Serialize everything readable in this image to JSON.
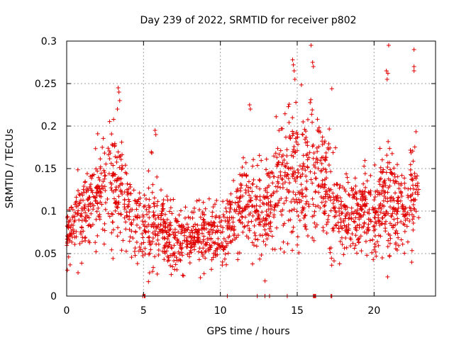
{
  "chart_data": {
    "type": "scatter",
    "title": "Day 239 of 2022, SRMTID for receiver p802",
    "xlabel": "GPS time / hours",
    "ylabel": "SRMTID / TECUs",
    "xlim": [
      0,
      24
    ],
    "ylim": [
      0,
      0.3
    ],
    "x_ticks": [
      "0",
      "5",
      "10",
      "15",
      "20"
    ],
    "y_ticks": [
      "0",
      "0.05",
      "0.1",
      "0.15",
      "0.2",
      "0.25",
      "0.3"
    ],
    "grid": true,
    "marker": "plus",
    "color": "#e00000",
    "profile": [
      [
        0.0,
        0.075,
        0.012
      ],
      [
        0.5,
        0.085,
        0.018
      ],
      [
        1.0,
        0.095,
        0.022
      ],
      [
        1.5,
        0.11,
        0.025
      ],
      [
        2.0,
        0.118,
        0.028
      ],
      [
        2.5,
        0.13,
        0.03
      ],
      [
        3.0,
        0.13,
        0.032
      ],
      [
        3.5,
        0.12,
        0.03
      ],
      [
        4.0,
        0.1,
        0.025
      ],
      [
        4.5,
        0.085,
        0.02
      ],
      [
        5.0,
        0.075,
        0.02
      ],
      [
        5.5,
        0.095,
        0.03
      ],
      [
        6.0,
        0.08,
        0.022
      ],
      [
        6.5,
        0.07,
        0.02
      ],
      [
        7.0,
        0.065,
        0.02
      ],
      [
        7.5,
        0.065,
        0.018
      ],
      [
        8.0,
        0.068,
        0.018
      ],
      [
        8.5,
        0.07,
        0.018
      ],
      [
        9.0,
        0.068,
        0.018
      ],
      [
        9.5,
        0.07,
        0.02
      ],
      [
        10.0,
        0.065,
        0.02
      ],
      [
        10.5,
        0.08,
        0.022
      ],
      [
        11.0,
        0.1,
        0.022
      ],
      [
        11.5,
        0.11,
        0.025
      ],
      [
        12.0,
        0.11,
        0.03
      ],
      [
        12.5,
        0.095,
        0.025
      ],
      [
        13.0,
        0.1,
        0.03
      ],
      [
        13.5,
        0.13,
        0.035
      ],
      [
        14.0,
        0.13,
        0.035
      ],
      [
        14.5,
        0.15,
        0.04
      ],
      [
        15.0,
        0.14,
        0.04
      ],
      [
        15.5,
        0.13,
        0.04
      ],
      [
        16.0,
        0.15,
        0.04
      ],
      [
        16.5,
        0.14,
        0.035
      ],
      [
        17.0,
        0.13,
        0.035
      ],
      [
        17.5,
        0.1,
        0.025
      ],
      [
        18.0,
        0.09,
        0.022
      ],
      [
        18.5,
        0.09,
        0.022
      ],
      [
        19.0,
        0.1,
        0.025
      ],
      [
        19.5,
        0.1,
        0.025
      ],
      [
        20.0,
        0.085,
        0.025
      ],
      [
        20.5,
        0.11,
        0.03
      ],
      [
        21.0,
        0.12,
        0.035
      ],
      [
        21.5,
        0.1,
        0.025
      ],
      [
        22.0,
        0.105,
        0.025
      ],
      [
        22.5,
        0.115,
        0.025
      ],
      [
        23.0,
        0.12,
        0.025
      ]
    ],
    "extra_points": [
      [
        3.35,
        0.245
      ],
      [
        3.4,
        0.24
      ],
      [
        3.45,
        0.23
      ],
      [
        3.3,
        0.22
      ],
      [
        5.75,
        0.195
      ],
      [
        5.8,
        0.19
      ],
      [
        11.9,
        0.225
      ],
      [
        11.95,
        0.22
      ],
      [
        14.7,
        0.278
      ],
      [
        14.75,
        0.272
      ],
      [
        14.8,
        0.265
      ],
      [
        14.85,
        0.255
      ],
      [
        15.9,
        0.295
      ],
      [
        16.0,
        0.275
      ],
      [
        16.05,
        0.27
      ],
      [
        17.25,
        0.244
      ],
      [
        20.95,
        0.295
      ],
      [
        20.8,
        0.265
      ],
      [
        20.9,
        0.262
      ],
      [
        20.85,
        0.255
      ],
      [
        22.6,
        0.29
      ],
      [
        22.6,
        0.27
      ],
      [
        22.6,
        0.265
      ]
    ],
    "zero_points": [
      4.95,
      5.05,
      5.1,
      10.45,
      12.4,
      12.9,
      13.2,
      14.35,
      16.05,
      16.1,
      16.15,
      16.2,
      17.2,
      17.25
    ]
  }
}
